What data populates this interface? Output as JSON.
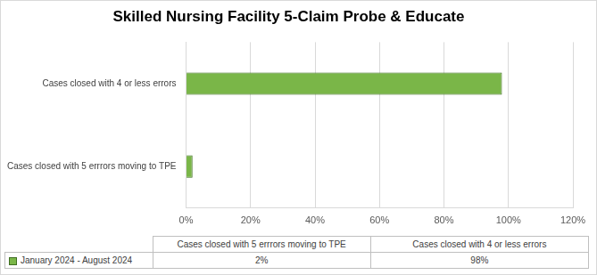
{
  "chart_data": {
    "type": "bar",
    "title": "Skilled Nursing Facility 5-Claim Probe & Educate",
    "orientation": "horizontal",
    "categories": [
      "Cases closed with 5 errrors moving to TPE",
      "Cases closed with 4 or less errors"
    ],
    "series": [
      {
        "name": "January 2024 - August 2024",
        "color": "#7ab648",
        "values": [
          2,
          98
        ],
        "value_labels": [
          "2%",
          "98%"
        ]
      }
    ],
    "xlim": [
      0,
      120
    ],
    "xticks": [
      {
        "value": 0,
        "label": "0%"
      },
      {
        "value": 20,
        "label": "20%"
      },
      {
        "value": 40,
        "label": "40%"
      },
      {
        "value": 60,
        "label": "60%"
      },
      {
        "value": 80,
        "label": "80%"
      },
      {
        "value": 100,
        "label": "100%"
      },
      {
        "value": 120,
        "label": "120%"
      }
    ],
    "grid": true
  }
}
